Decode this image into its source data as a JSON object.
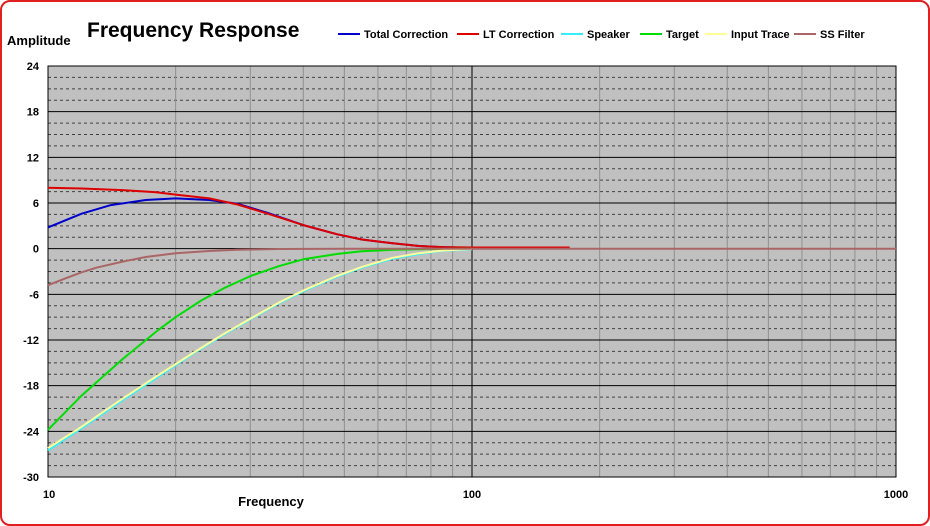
{
  "chart_data": {
    "type": "line",
    "title": "Frequency Response",
    "xlabel": "Frequency",
    "ylabel": "Amplitude",
    "x_scale": "log",
    "xlim": [
      10,
      1000
    ],
    "ylim": [
      -30,
      24
    ],
    "x_ticks": [
      10,
      100,
      1000
    ],
    "x_tick_labels": [
      "10",
      "100",
      "1000"
    ],
    "y_ticks": [
      -30,
      -24,
      -18,
      -12,
      -6,
      0,
      6,
      12,
      18,
      24
    ],
    "y_tick_labels": [
      "-30",
      "-24",
      "-18",
      "-12",
      "-6",
      "0",
      "6",
      "12",
      "18",
      "24"
    ],
    "grid": true,
    "plot_background": "#c0c0c0",
    "legend_position": "top",
    "series": [
      {
        "name": "Total Correction",
        "color": "#0000cc",
        "x": [
          10,
          12,
          14,
          17,
          20,
          24,
          28,
          33,
          40,
          48,
          55,
          65,
          75,
          85,
          100
        ],
        "y": [
          2.8,
          4.6,
          5.7,
          6.4,
          6.6,
          6.4,
          5.9,
          4.7,
          3.1,
          1.9,
          1.2,
          0.7,
          0.35,
          0.2,
          0.1
        ]
      },
      {
        "name": "LT Correction",
        "color": "#dd0000",
        "x": [
          10,
          12,
          15,
          18,
          20,
          24,
          28,
          33,
          40,
          48,
          55,
          65,
          75,
          85,
          100,
          130,
          170
        ],
        "y": [
          8.0,
          7.9,
          7.7,
          7.4,
          7.1,
          6.6,
          5.8,
          4.6,
          3.1,
          1.9,
          1.2,
          0.7,
          0.35,
          0.2,
          0.15,
          0.15,
          0.15
        ]
      },
      {
        "name": "Speaker",
        "color": "#33eeff",
        "x": [
          10,
          12,
          15,
          18,
          22,
          26,
          30,
          35,
          40,
          48,
          55,
          65,
          75,
          85,
          100
        ],
        "y": [
          -26.5,
          -23.6,
          -19.9,
          -17.0,
          -13.8,
          -11.3,
          -9.3,
          -7.2,
          -5.6,
          -3.7,
          -2.5,
          -1.3,
          -0.7,
          -0.3,
          -0.1
        ]
      },
      {
        "name": "Target",
        "color": "#00dd00",
        "x": [
          10,
          12,
          15,
          18,
          20,
          23,
          26,
          30,
          35,
          40,
          48,
          55,
          65,
          80,
          100
        ],
        "y": [
          -23.8,
          -19.3,
          -14.5,
          -10.9,
          -9.0,
          -6.8,
          -5.2,
          -3.6,
          -2.3,
          -1.4,
          -0.7,
          -0.35,
          -0.15,
          -0.05,
          0
        ]
      },
      {
        "name": "Input Trace",
        "color": "#ffff99",
        "x": [
          10,
          12,
          15,
          18,
          22,
          26,
          30,
          35,
          40,
          48,
          55,
          65,
          75,
          85,
          100
        ],
        "y": [
          -26.2,
          -23.4,
          -19.7,
          -16.8,
          -13.7,
          -11.2,
          -9.2,
          -7.1,
          -5.5,
          -3.6,
          -2.4,
          -1.2,
          -0.6,
          -0.25,
          -0.05
        ]
      },
      {
        "name": "SS Filter",
        "color": "#aa6666",
        "x": [
          10,
          11,
          12,
          13,
          15,
          17,
          20,
          24,
          28,
          35,
          50,
          70,
          100,
          1000
        ],
        "y": [
          -4.8,
          -3.9,
          -3.1,
          -2.5,
          -1.7,
          -1.1,
          -0.6,
          -0.3,
          -0.15,
          -0.05,
          0,
          0,
          0,
          0
        ]
      }
    ]
  }
}
